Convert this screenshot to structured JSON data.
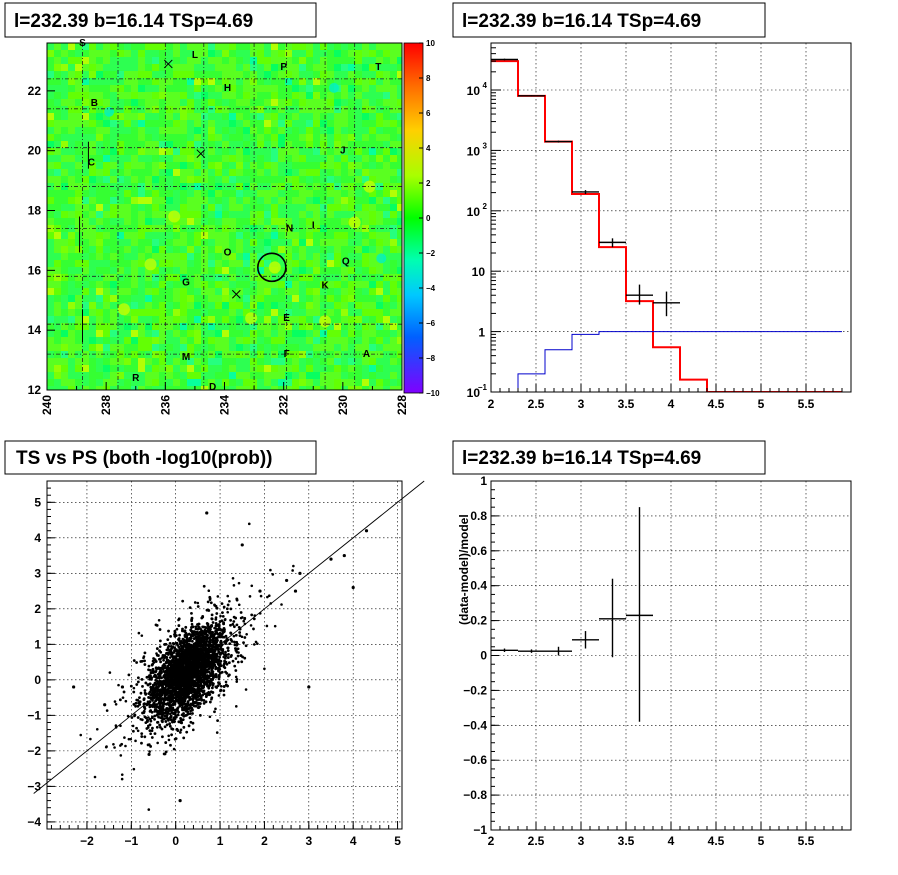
{
  "chart_data": [
    {
      "type": "heatmap",
      "title": "l=232.39 b=16.14 TSp=4.69",
      "xlim": [
        240,
        228
      ],
      "ylim": [
        12,
        23.6
      ],
      "x_ticks": [
        "240",
        "238",
        "236",
        "234",
        "232",
        "230",
        "228"
      ],
      "y_ticks": [
        "14",
        "16",
        "18",
        "20",
        "22"
      ],
      "colorbar": {
        "range": [
          -10,
          10
        ],
        "ticks": [
          "10",
          "8",
          "6",
          "4",
          "2",
          "0",
          "−2",
          "−4",
          "−6",
          "−8",
          "−10"
        ]
      },
      "circle_center": [
        232.4,
        16.1
      ],
      "cross_markers": [
        [
          235.9,
          22.9
        ],
        [
          234.8,
          19.9
        ],
        [
          233.6,
          15.2
        ]
      ],
      "letters": [
        {
          "t": "S",
          "x": 238.8,
          "y": 23.5
        },
        {
          "t": "L",
          "x": 235.0,
          "y": 23.1
        },
        {
          "t": "P",
          "x": 232.0,
          "y": 22.7
        },
        {
          "t": "T",
          "x": 228.8,
          "y": 22.7
        },
        {
          "t": "H",
          "x": 233.9,
          "y": 22.0
        },
        {
          "t": "B",
          "x": 238.4,
          "y": 21.5
        },
        {
          "t": "J",
          "x": 230.0,
          "y": 19.9
        },
        {
          "t": "C",
          "x": 238.5,
          "y": 19.5
        },
        {
          "t": "N",
          "x": 231.8,
          "y": 17.3
        },
        {
          "t": "I",
          "x": 231.0,
          "y": 17.4
        },
        {
          "t": "O",
          "x": 233.9,
          "y": 16.5
        },
        {
          "t": "Q",
          "x": 229.9,
          "y": 16.2
        },
        {
          "t": "G",
          "x": 235.3,
          "y": 15.5
        },
        {
          "t": "K",
          "x": 230.6,
          "y": 15.4
        },
        {
          "t": "E",
          "x": 231.9,
          "y": 14.3
        },
        {
          "t": "M",
          "x": 235.3,
          "y": 13.0
        },
        {
          "t": "F",
          "x": 231.9,
          "y": 13.1
        },
        {
          "t": "A",
          "x": 229.2,
          "y": 13.1
        },
        {
          "t": "R",
          "x": 237.0,
          "y": 12.3
        },
        {
          "t": "D",
          "x": 234.4,
          "y": 12.0
        }
      ]
    },
    {
      "type": "line",
      "title": "l=232.39 b=16.14 TSp=4.69",
      "xlim": [
        2,
        6
      ],
      "ylim": [
        0.1,
        60000
      ],
      "yscale": "log",
      "x_ticks": [
        "2",
        "2.5",
        "3",
        "3.5",
        "4",
        "4.5",
        "5",
        "5.5"
      ],
      "y_ticks": [
        {
          "v": 10000,
          "b": "10",
          "e": "4"
        },
        {
          "v": 1000,
          "b": "10",
          "e": "3"
        },
        {
          "v": 100,
          "b": "10",
          "e": "2"
        },
        {
          "v": 10,
          "b": "10",
          "e": ""
        },
        {
          "v": 1,
          "b": "1",
          "e": ""
        },
        {
          "v": 0.1,
          "b": "10",
          "e": "−1"
        }
      ],
      "series": [
        {
          "color": "#ff0000",
          "edges": [
            2,
            2.3,
            2.6,
            2.9,
            3.2,
            3.5,
            3.8,
            4.1,
            4.4,
            4.7,
            5.0,
            5.3,
            5.6,
            5.9
          ],
          "values": [
            30000,
            8000,
            1400,
            190,
            25,
            3.2,
            0.55,
            0.16,
            0.1,
            0.1,
            0.1,
            0.1,
            0.1
          ]
        },
        {
          "color": "#0000cc",
          "edges": [
            2,
            2.3,
            2.6,
            2.9,
            3.2,
            3.5,
            3.8,
            4.1,
            4.4,
            4.7,
            5.0,
            5.3,
            5.6,
            5.9
          ],
          "values": [
            0.1,
            0.2,
            0.5,
            0.9,
            1.0,
            1.0,
            1.0,
            1.0,
            1.0,
            1.0,
            1.0,
            1.0,
            1.0
          ]
        }
      ],
      "points": [
        {
          "x": 2.15,
          "y": 32000,
          "xerr": 0.15,
          "ylo": 31000,
          "yhi": 33000
        },
        {
          "x": 2.45,
          "y": 8000,
          "xerr": 0.15,
          "ylo": 7800,
          "yhi": 8200
        },
        {
          "x": 2.75,
          "y": 1400,
          "xerr": 0.15,
          "ylo": 1350,
          "yhi": 1450
        },
        {
          "x": 3.05,
          "y": 205,
          "xerr": 0.15,
          "ylo": 190,
          "yhi": 220
        },
        {
          "x": 3.35,
          "y": 30,
          "xerr": 0.15,
          "ylo": 25,
          "yhi": 35
        },
        {
          "x": 3.65,
          "y": 4,
          "xerr": 0.15,
          "ylo": 2.8,
          "yhi": 6
        },
        {
          "x": 3.95,
          "y": 3,
          "xerr": 0.15,
          "ylo": 1.8,
          "yhi": 4.6
        }
      ]
    },
    {
      "type": "scatter",
      "title": "TS vs PS (both -log10(prob))",
      "xlim": [
        -2.9,
        5.1
      ],
      "ylim": [
        -4.2,
        5.6
      ],
      "x_ticks": [
        "−2",
        "−1",
        "0",
        "1",
        "2",
        "3",
        "4",
        "5"
      ],
      "y_ticks": [
        "−4",
        "−3",
        "−2",
        "−1",
        "0",
        "1",
        "2",
        "3",
        "4",
        "5"
      ],
      "reference_line": {
        "slope": 1,
        "intercept": 0
      },
      "outliers": [
        [
          4.3,
          4.2
        ],
        [
          3.5,
          3.4
        ],
        [
          3.8,
          3.5
        ],
        [
          4.0,
          2.6
        ],
        [
          3.0,
          -0.2
        ],
        [
          2.5,
          2.8
        ],
        [
          2.8,
          3.0
        ],
        [
          0.7,
          4.7
        ],
        [
          1.5,
          3.8
        ],
        [
          -2.3,
          -0.2
        ],
        [
          -1.6,
          -0.7
        ],
        [
          0.1,
          -3.4
        ],
        [
          -0.6,
          -2.1
        ],
        [
          2.7,
          2.5
        ],
        [
          -1.2,
          -0.2
        ],
        [
          1.9,
          2.5
        ]
      ]
    },
    {
      "type": "line",
      "title": "l=232.39 b=16.14 TSp=4.69",
      "ylabel": "(data-model)/model",
      "xlim": [
        2,
        6
      ],
      "ylim": [
        -1,
        1
      ],
      "x_ticks": [
        "2",
        "2.5",
        "3",
        "3.5",
        "4",
        "4.5",
        "5",
        "5.5"
      ],
      "y_ticks": [
        "1",
        "0.8",
        "0.6",
        "0.4",
        "0.2",
        "0",
        "−0.2",
        "−0.4",
        "−0.6",
        "−0.8",
        "−1"
      ],
      "points": [
        {
          "x": 2.15,
          "y": 0.03,
          "xerr": 0.15,
          "ylo": 0.02,
          "yhi": 0.04
        },
        {
          "x": 2.45,
          "y": 0.025,
          "xerr": 0.15,
          "ylo": 0.015,
          "yhi": 0.035
        },
        {
          "x": 2.75,
          "y": 0.025,
          "xerr": 0.15,
          "ylo": 0.0,
          "yhi": 0.05
        },
        {
          "x": 3.05,
          "y": 0.09,
          "xerr": 0.15,
          "ylo": 0.04,
          "yhi": 0.14
        },
        {
          "x": 3.35,
          "y": 0.21,
          "xerr": 0.15,
          "ylo": -0.01,
          "yhi": 0.44
        },
        {
          "x": 3.65,
          "y": 0.23,
          "xerr": 0.15,
          "ylo": -0.38,
          "yhi": 0.85
        }
      ]
    }
  ]
}
